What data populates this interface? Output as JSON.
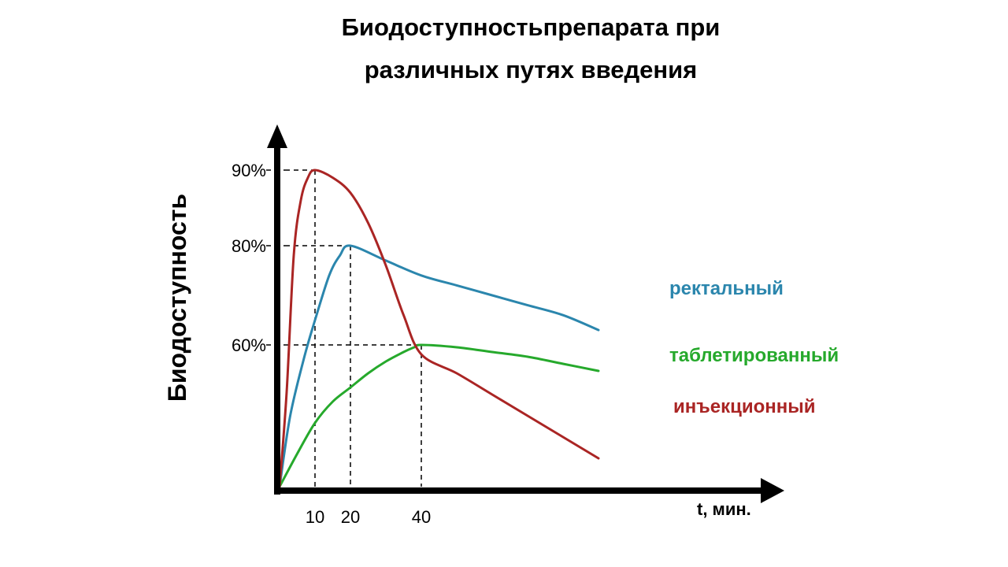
{
  "chart_data": {
    "type": "line",
    "title_line1": "Биодоступностьпрепарата при",
    "title_line2": "различных путях введения",
    "xlabel": "t, мин.",
    "ylabel": "Биодоступность",
    "x_ticks": [
      "10",
      "20",
      "40"
    ],
    "y_ticks": [
      "90%",
      "80%",
      "60%"
    ],
    "grid": false,
    "series": [
      {
        "name": "ректальный",
        "color": "#2b86ad",
        "peak": {
          "x": 20,
          "y": 80
        },
        "points": [
          [
            0,
            0
          ],
          [
            3,
            30
          ],
          [
            7,
            55
          ],
          [
            10,
            65
          ],
          [
            14,
            74
          ],
          [
            17,
            78
          ],
          [
            20,
            80
          ],
          [
            30,
            77
          ],
          [
            40,
            74
          ],
          [
            50,
            72
          ],
          [
            60,
            70
          ],
          [
            70,
            68
          ],
          [
            80,
            66
          ],
          [
            90,
            63
          ]
        ]
      },
      {
        "name": "таблетированный",
        "color": "#26a92c",
        "peak": {
          "x": 40,
          "y": 60
        },
        "points": [
          [
            0,
            0
          ],
          [
            5,
            14
          ],
          [
            10,
            27
          ],
          [
            15,
            36
          ],
          [
            20,
            42
          ],
          [
            25,
            48
          ],
          [
            30,
            53
          ],
          [
            35,
            57
          ],
          [
            38,
            59
          ],
          [
            40,
            60
          ],
          [
            50,
            59
          ],
          [
            60,
            57
          ],
          [
            70,
            55
          ],
          [
            80,
            52
          ],
          [
            90,
            49
          ]
        ]
      },
      {
        "name": "инъекционный",
        "color": "#aa2524",
        "peak": {
          "x": 10,
          "y": 90
        },
        "points": [
          [
            0,
            0
          ],
          [
            2,
            40
          ],
          [
            4,
            78
          ],
          [
            6,
            86
          ],
          [
            8,
            89
          ],
          [
            10,
            90
          ],
          [
            15,
            89
          ],
          [
            20,
            87
          ],
          [
            25,
            83
          ],
          [
            30,
            76
          ],
          [
            35,
            66
          ],
          [
            40,
            56
          ],
          [
            50,
            48
          ],
          [
            60,
            39
          ],
          [
            70,
            30
          ],
          [
            80,
            21
          ],
          [
            90,
            12
          ]
        ]
      }
    ]
  }
}
